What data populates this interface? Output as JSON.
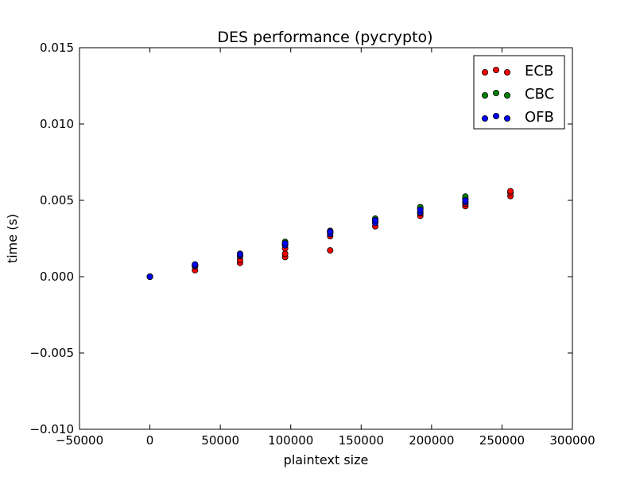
{
  "chart_data": {
    "type": "scatter",
    "title": "DES performance (pycrypto)",
    "xlabel": "plaintext size",
    "ylabel": "time (s)",
    "xlim": [
      -50000,
      300000
    ],
    "ylim": [
      -0.01,
      0.015
    ],
    "xticks": [
      "−50000",
      "0",
      "50000",
      "100000",
      "150000",
      "200000",
      "250000",
      "300000"
    ],
    "xtick_values": [
      -50000,
      0,
      50000,
      100000,
      150000,
      200000,
      250000,
      300000
    ],
    "yticks": [
      "−0.010",
      "−0.005",
      "0.000",
      "0.005",
      "0.010",
      "0.015"
    ],
    "ytick_values": [
      -0.01,
      -0.005,
      0.0,
      0.005,
      0.01,
      0.015
    ],
    "grid": false,
    "legend_position": "top-right",
    "series": [
      {
        "name": "ECB",
        "color": "#ff0000",
        "points": [
          [
            0,
            0.0
          ],
          [
            0,
            0.0
          ],
          [
            32000,
            0.00042
          ],
          [
            32000,
            0.00068
          ],
          [
            32000,
            0.00075
          ],
          [
            64000,
            0.0009
          ],
          [
            64000,
            0.0011
          ],
          [
            64000,
            0.00135
          ],
          [
            96000,
            0.00128
          ],
          [
            96000,
            0.0015
          ],
          [
            96000,
            0.00185
          ],
          [
            96000,
            0.00215
          ],
          [
            128000,
            0.00172
          ],
          [
            128000,
            0.00265
          ],
          [
            128000,
            0.0029
          ],
          [
            160000,
            0.0033
          ],
          [
            160000,
            0.00365
          ],
          [
            192000,
            0.00398
          ],
          [
            192000,
            0.00415
          ],
          [
            224000,
            0.00462
          ],
          [
            224000,
            0.00478
          ],
          [
            256000,
            0.00528
          ],
          [
            256000,
            0.0055
          ],
          [
            256000,
            0.0056
          ]
        ]
      },
      {
        "name": "CBC",
        "color": "#008000",
        "points": [
          [
            0,
            0.0
          ],
          [
            32000,
            0.0007
          ],
          [
            32000,
            0.00078
          ],
          [
            64000,
            0.00138
          ],
          [
            64000,
            0.0015
          ],
          [
            96000,
            0.0021
          ],
          [
            96000,
            0.00228
          ],
          [
            128000,
            0.0029
          ],
          [
            128000,
            0.003
          ],
          [
            160000,
            0.00368
          ],
          [
            160000,
            0.0038
          ],
          [
            192000,
            0.00445
          ],
          [
            192000,
            0.00455
          ],
          [
            224000,
            0.0051
          ],
          [
            224000,
            0.00525
          ]
        ]
      },
      {
        "name": "OFB",
        "color": "#0000ff",
        "points": [
          [
            0,
            0.0
          ],
          [
            32000,
            0.00072
          ],
          [
            32000,
            0.0008
          ],
          [
            64000,
            0.0014
          ],
          [
            64000,
            0.00148
          ],
          [
            96000,
            0.00205
          ],
          [
            96000,
            0.00218
          ],
          [
            128000,
            0.0028
          ],
          [
            128000,
            0.00295
          ],
          [
            160000,
            0.00352
          ],
          [
            160000,
            0.0037
          ],
          [
            192000,
            0.00422
          ],
          [
            192000,
            0.00438
          ],
          [
            224000,
            0.00488
          ],
          [
            224000,
            0.005
          ]
        ]
      }
    ]
  }
}
